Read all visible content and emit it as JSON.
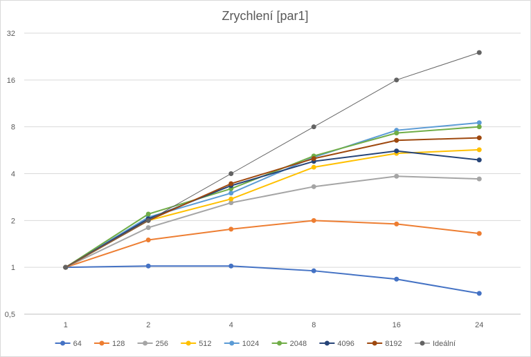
{
  "chart_data": {
    "type": "line",
    "title": "Zrychlení  [par1]",
    "xlabel": "",
    "ylabel": "",
    "y_scale": "log2",
    "ylim": [
      0.5,
      32
    ],
    "x_categories": [
      "1",
      "2",
      "4",
      "8",
      "16",
      "24"
    ],
    "y_ticks": [
      0.5,
      1,
      2,
      4,
      8,
      16,
      32
    ],
    "y_tick_labels": [
      "0,5",
      "1",
      "2",
      "4",
      "8",
      "16",
      "32"
    ],
    "grid": "horizontal",
    "legend_position": "bottom",
    "series": [
      {
        "name": "64",
        "color": "#4472C4",
        "values": [
          1.0,
          1.02,
          1.02,
          0.95,
          0.84,
          0.68
        ]
      },
      {
        "name": "128",
        "color": "#ED7D31",
        "values": [
          1.0,
          1.5,
          1.76,
          2.0,
          1.9,
          1.65
        ]
      },
      {
        "name": "256",
        "color": "#A5A5A5",
        "values": [
          1.0,
          1.8,
          2.6,
          3.3,
          3.85,
          3.7
        ]
      },
      {
        "name": "512",
        "color": "#FFC000",
        "values": [
          1.0,
          2.0,
          2.75,
          4.4,
          5.4,
          5.7
        ]
      },
      {
        "name": "1024",
        "color": "#5B9BD5",
        "values": [
          1.0,
          2.1,
          3.0,
          5.1,
          7.6,
          8.5
        ]
      },
      {
        "name": "2048",
        "color": "#70AD47",
        "values": [
          1.0,
          2.2,
          3.2,
          5.2,
          7.3,
          8.0
        ]
      },
      {
        "name": "4096",
        "color": "#264478",
        "values": [
          1.0,
          2.05,
          3.35,
          4.8,
          5.6,
          4.9
        ]
      },
      {
        "name": "8192",
        "color": "#9E480E",
        "values": [
          1.0,
          2.0,
          3.45,
          5.0,
          6.55,
          6.8
        ]
      },
      {
        "name": "Ideální",
        "color": "#636363",
        "values": [
          1,
          2,
          4,
          8,
          16,
          24
        ]
      }
    ]
  }
}
